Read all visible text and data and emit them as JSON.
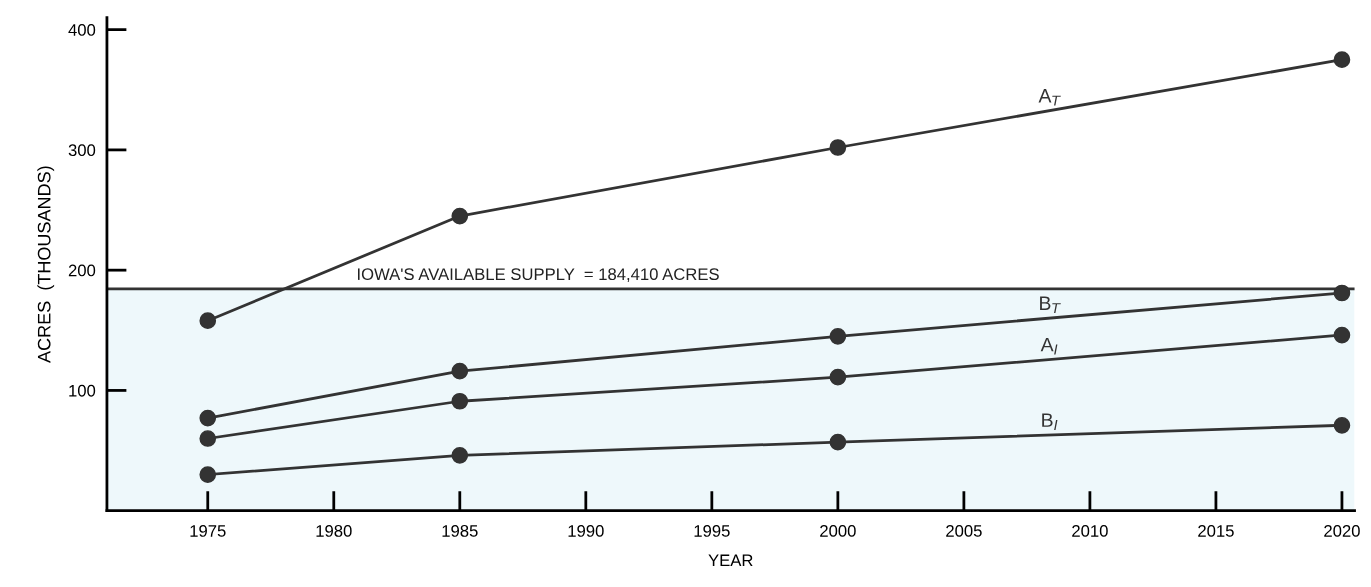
{
  "chart_data": {
    "type": "line",
    "xlabel": "YEAR",
    "ylabel": "ACRES  (THOUSANDS)",
    "x": [
      1975,
      1985,
      2000,
      2020
    ],
    "series": [
      {
        "name": "A$_{T}$",
        "color": "#333333",
        "values": [
          158,
          245,
          302,
          375
        ]
      },
      {
        "name": "B$_{T}$",
        "color": "#333333",
        "values": [
          77,
          116,
          145,
          181
        ]
      },
      {
        "name": "A$_{I}$",
        "color": "#333333",
        "values": [
          60,
          91,
          111,
          146
        ]
      },
      {
        "name": "B$_{I}$",
        "color": "#333333",
        "values": [
          30,
          46,
          57,
          71
        ]
      }
    ],
    "xlim": [
      1971,
      2020.5
    ],
    "xticks": [
      1975,
      1980,
      1985,
      1990,
      1995,
      2000,
      2005,
      2010,
      2015,
      2020
    ],
    "ylim": [
      0,
      410
    ],
    "yticks": [
      100,
      200,
      300,
      400
    ],
    "ref_lines": [
      {
        "axis": "y",
        "value": 184.41,
        "label": "IOWA'S AVAILABLE SUPPLY  = 184,410 ACRES",
        "color": "#333333",
        "line_style": "solid"
      }
    ],
    "bands": [
      {
        "axis": "y",
        "from": 0,
        "to": 184.41,
        "color": "#eef8fb"
      }
    ],
    "grid": false,
    "legend": false,
    "marker": "circle",
    "line_style": "solid"
  }
}
